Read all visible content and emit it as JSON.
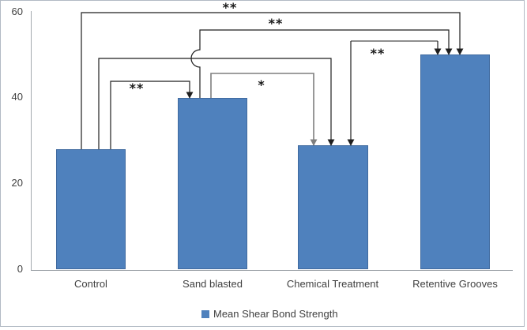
{
  "chart_data": {
    "type": "bar",
    "title": "",
    "categories": [
      "Control",
      "Sand blasted",
      "Chemical Treatment",
      "Retentive Grooves"
    ],
    "series": [
      {
        "name": "Mean Shear Bond Strength",
        "values": [
          28,
          40,
          29,
          50
        ]
      }
    ],
    "ylim": [
      0,
      60
    ],
    "yticks": [
      0,
      20,
      40,
      60
    ],
    "grid": false,
    "legend_position": "bottom",
    "bar_color": "#4F81BD",
    "significance_comparisons": [
      {
        "from": "Control",
        "to": "Retentive Grooves",
        "label": "**"
      },
      {
        "from": "Sand blasted",
        "to": "Retentive Grooves",
        "label": "**"
      },
      {
        "from": "Chemical Treatment",
        "to": "Retentive Grooves",
        "label": "**"
      },
      {
        "from": "Control",
        "to": "Chemical Treatment",
        "label": ""
      },
      {
        "from": "Control",
        "to": "Sand blasted",
        "label": "**"
      },
      {
        "from": "Sand blasted",
        "to": "Chemical Treatment",
        "label": "*"
      }
    ]
  },
  "y_axis": {
    "ticks": [
      "60",
      "40",
      "20",
      "0"
    ]
  },
  "x_axis": {
    "labels": [
      "Control",
      "Sand blasted",
      "Chemical Treatment",
      "Retentive Grooves"
    ]
  },
  "legend": {
    "label": "Mean Shear Bond Strength"
  },
  "colors": {
    "bar": "#4F81BD",
    "bracket_black": "#1f1f1f",
    "bracket_gray": "#7f7f7f",
    "axis": "#a3a9af",
    "text": "#404040"
  }
}
